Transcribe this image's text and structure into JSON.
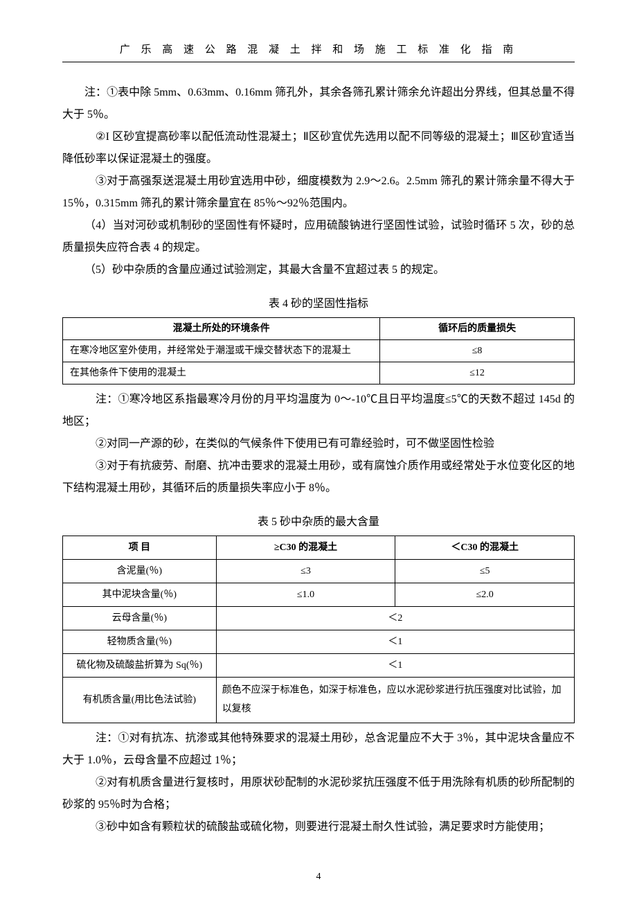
{
  "header": "广 乐 高 速 公 路 混 凝 土 拌 和 场 施 工 标 准 化 指 南",
  "body": {
    "p1": "注：①表中除 5mm、0.63mm、0.16mm 筛孔外，其余各筛孔累计筛余允许超出分界线，但其总量不得大于 5％。",
    "p2": "②I 区砂宜提高砂率以配低流动性混凝土；Ⅱ区砂宜优先选用以配不同等级的混凝土；Ⅲ区砂宜适当降低砂率以保证混凝土的强度。",
    "p3": "③对于高强泵送混凝土用砂宜选用中砂，细度模数为 2.9～2.6。2.5mm 筛孔的累计筛余量不得大于 15％，0.315mm 筛孔的累计筛余量宜在 85％～92％范围内。",
    "p4": "（4）当对河砂或机制砂的坚固性有怀疑时，应用硫酸钠进行坚固性试验，试验时循环 5 次，砂的总质量损失应符合表 4 的规定。",
    "p5": "（5）砂中杂质的含量应通过试验测定，其最大含量不宜超过表 5 的规定。"
  },
  "table4": {
    "caption": "表 4    砂的坚固性指标",
    "headers": [
      "混凝土所处的环境条件",
      "循环后的质量损失"
    ],
    "rows": [
      [
        "在寒冷地区室外使用，并经常处于潮湿或干燥交替状态下的混凝土",
        "≤8"
      ],
      [
        "在其他条件下使用的混凝土",
        "≤12"
      ]
    ]
  },
  "notes4": {
    "n1": "注：①寒冷地区系指最寒冷月份的月平均温度为 0～-10℃且日平均温度≤5℃的天数不超过 145d 的地区；",
    "n2": "②对同一产源的砂，在类似的气候条件下使用已有可靠经验时，可不做坚固性检验",
    "n3": "③对于有抗疲劳、耐磨、抗冲击要求的混凝土用砂，或有腐蚀介质作用或经常处于水位变化区的地下结构混凝土用砂，其循环后的质量损失率应小于 8％。"
  },
  "table5": {
    "caption": "表 5 砂中杂质的最大含量",
    "headers": [
      "项    目",
      "≥C30 的混凝土",
      "＜C30 的混凝土"
    ],
    "rows": [
      {
        "label": "含泥量(％)",
        "c2": "≤3",
        "c3": "≤5"
      },
      {
        "label": "其中泥块含量(％)",
        "c2": "≤1.0",
        "c3": "≤2.0"
      },
      {
        "label": "云母含量(％)",
        "merged": "＜2"
      },
      {
        "label": "轻物质含量(％)",
        "merged": "＜1"
      },
      {
        "label": "硫化物及硫酸盐折算为 Sq(％)",
        "merged": "＜1"
      },
      {
        "label": "有机质含量(用比色法试验)",
        "merged_left": "颜色不应深于标准色，如深于标准色，应以水泥砂浆进行抗压强度对比试验，加以复核"
      }
    ]
  },
  "notes5": {
    "n1": "注：①对有抗冻、抗渗或其他特殊要求的混凝土用砂，总含泥量应不大于 3％，其中泥块含量应不大于 1.0％，云母含量不应超过 1％；",
    "n2": "②对有机质含量进行复核时，用原状砂配制的水泥砂浆抗压强度不低于用洗除有机质的砂所配制的砂浆的 95％时为合格；",
    "n3": "③砂中如含有颗粒状的硫酸盐或硫化物，则要进行混凝土耐久性试验，满足要求时方能使用；"
  },
  "page_number": "4"
}
